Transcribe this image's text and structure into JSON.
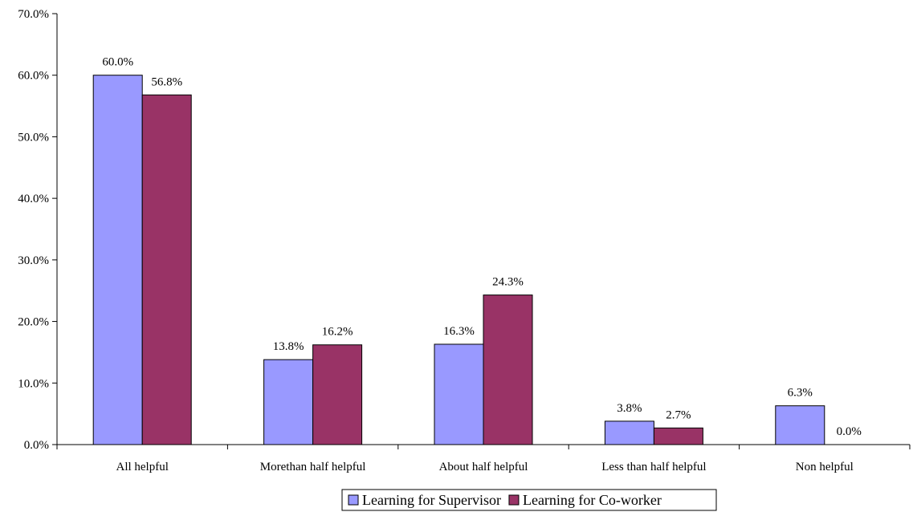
{
  "chart_data": {
    "type": "bar",
    "title": "",
    "xlabel": "",
    "ylabel": "",
    "categories": [
      "All helpful",
      "Morethan half helpful",
      "About half helpful",
      "Less than half helpful",
      "Non helpful"
    ],
    "series": [
      {
        "name": "Learning for Supervisor",
        "values": [
          60.0,
          13.8,
          16.3,
          3.8,
          6.3
        ],
        "color": "#9999ff"
      },
      {
        "name": "Learning for Co-worker",
        "values": [
          56.8,
          16.2,
          24.3,
          2.7,
          0.0
        ],
        "color": "#993366"
      }
    ],
    "data_labels": [
      [
        "60.0%",
        "13.8%",
        "16.3%",
        "3.8%",
        "6.3%"
      ],
      [
        "56.8%",
        "16.2%",
        "24.3%",
        "2.7%",
        "0.0%"
      ]
    ],
    "ylim": [
      0,
      70
    ],
    "yticks": [
      0,
      10,
      20,
      30,
      40,
      50,
      60,
      70
    ],
    "ytick_labels": [
      "0.0%",
      "10.0%",
      "20.0%",
      "30.0%",
      "40.0%",
      "50.0%",
      "60.0%",
      "70.0%"
    ],
    "grid": false,
    "legend": {
      "placement": "bottom-center"
    }
  }
}
